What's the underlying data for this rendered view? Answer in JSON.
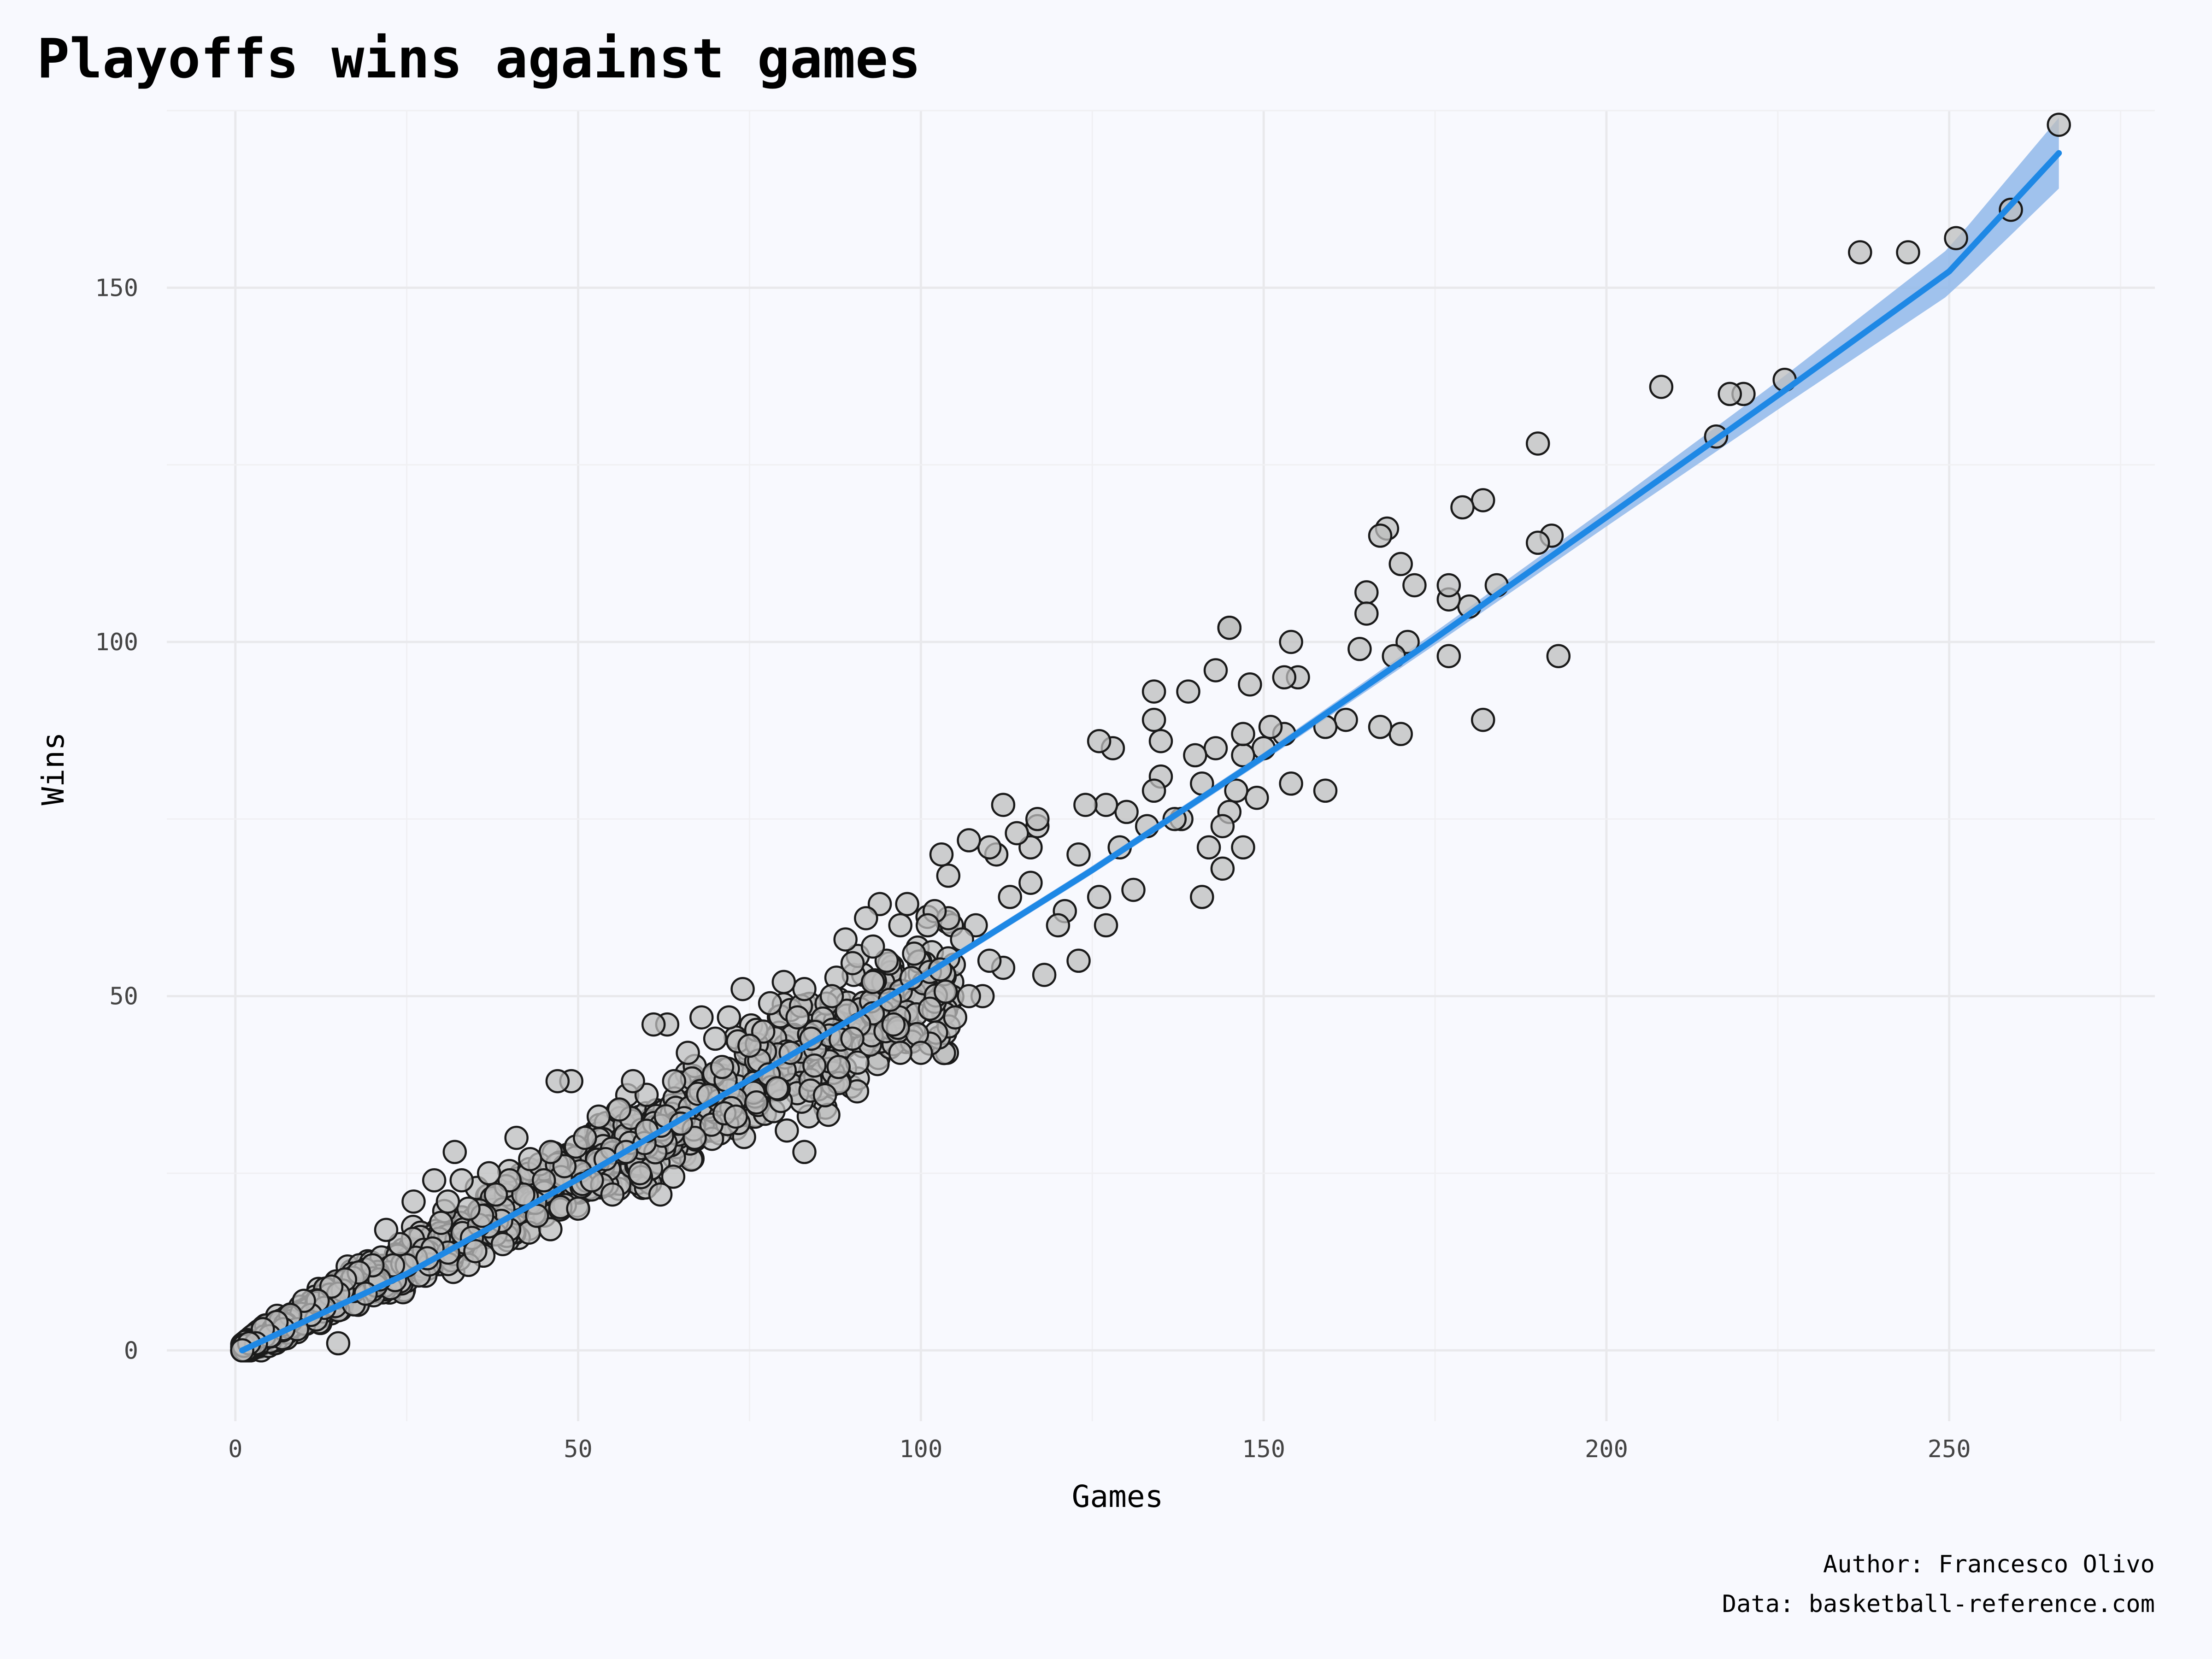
{
  "chart_data": {
    "type": "scatter",
    "title": "Playoffs wins against games",
    "xlabel": "Games",
    "ylabel": "Wins",
    "xlim": [
      -10,
      280
    ],
    "ylim": [
      -10,
      175
    ],
    "x_ticks": [
      0,
      50,
      100,
      150,
      200,
      250
    ],
    "y_ticks": [
      0,
      50,
      100,
      150
    ],
    "x_tick_labels": [
      "0",
      "50",
      "100",
      "150",
      "200",
      "250"
    ],
    "y_tick_labels": [
      "0",
      "50",
      "100",
      "150"
    ],
    "grid": true,
    "point_color": "#BEBEBE",
    "point_edge_color": "#1A1A1A",
    "trend_line": {
      "method": "smooth",
      "color": "#1E88E5",
      "band_color": "#90B9EA",
      "points": [
        [
          1,
          0
        ],
        [
          25,
          10.8
        ],
        [
          50,
          24.2
        ],
        [
          75,
          38.2
        ],
        [
          100,
          52.6
        ],
        [
          125,
          67.8
        ],
        [
          150,
          83.8
        ],
        [
          175,
          100.5
        ],
        [
          200,
          117.6
        ],
        [
          225,
          134.8
        ],
        [
          250,
          152.3
        ],
        [
          266,
          169
        ]
      ],
      "band_halfwidth": [
        [
          1,
          0.4
        ],
        [
          150,
          0.6
        ],
        [
          175,
          0.9
        ],
        [
          200,
          1.3
        ],
        [
          225,
          2.0
        ],
        [
          250,
          3.3
        ],
        [
          266,
          5.0
        ]
      ]
    },
    "highlight_points": [
      [
        266,
        173
      ],
      [
        259,
        161
      ],
      [
        251,
        157
      ],
      [
        244,
        155
      ],
      [
        237,
        155
      ],
      [
        226,
        137
      ],
      [
        220,
        135
      ],
      [
        218,
        135
      ],
      [
        216,
        129
      ],
      [
        208,
        136
      ],
      [
        193,
        98
      ],
      [
        192,
        115
      ],
      [
        190,
        114
      ],
      [
        190,
        128
      ],
      [
        184,
        108
      ],
      [
        182,
        120
      ],
      [
        182,
        89
      ],
      [
        180,
        105
      ],
      [
        179,
        119
      ],
      [
        177,
        98
      ],
      [
        177,
        106
      ],
      [
        177,
        108
      ],
      [
        172,
        108
      ],
      [
        171,
        100
      ],
      [
        170,
        87
      ],
      [
        170,
        111
      ],
      [
        169,
        98
      ],
      [
        168,
        116
      ],
      [
        167,
        115
      ],
      [
        167,
        88
      ],
      [
        165,
        107
      ],
      [
        165,
        104
      ],
      [
        164,
        99
      ],
      [
        162,
        89
      ],
      [
        159,
        79
      ],
      [
        159,
        88
      ],
      [
        155,
        95
      ],
      [
        154,
        100
      ],
      [
        154,
        80
      ],
      [
        153,
        87
      ],
      [
        153,
        95
      ],
      [
        151,
        88
      ],
      [
        150,
        85
      ],
      [
        149,
        78
      ],
      [
        148,
        94
      ],
      [
        147,
        84
      ],
      [
        147,
        87
      ],
      [
        147,
        71
      ],
      [
        146,
        79
      ],
      [
        145,
        102
      ],
      [
        145,
        102
      ],
      [
        145,
        76
      ],
      [
        144,
        74
      ],
      [
        144,
        68
      ],
      [
        143,
        85
      ],
      [
        143,
        96
      ],
      [
        142,
        71
      ],
      [
        141,
        64
      ],
      [
        141,
        80
      ],
      [
        140,
        84
      ],
      [
        139,
        93
      ],
      [
        138,
        75
      ],
      [
        137,
        75
      ],
      [
        135,
        86
      ],
      [
        135,
        81
      ],
      [
        134,
        79
      ],
      [
        134,
        89
      ],
      [
        134,
        93
      ],
      [
        133,
        74
      ],
      [
        131,
        65
      ],
      [
        130,
        76
      ],
      [
        129,
        71
      ],
      [
        128,
        85
      ],
      [
        127,
        77
      ],
      [
        127,
        60
      ],
      [
        126,
        86
      ],
      [
        126,
        64
      ],
      [
        124,
        77
      ],
      [
        123,
        55
      ],
      [
        123,
        70
      ],
      [
        121,
        62
      ],
      [
        120,
        60
      ],
      [
        118,
        53
      ],
      [
        117,
        74
      ],
      [
        117,
        75
      ],
      [
        116,
        71
      ],
      [
        116,
        66
      ],
      [
        114,
        73
      ],
      [
        113,
        64
      ],
      [
        112,
        54
      ],
      [
        112,
        77
      ],
      [
        111,
        70
      ],
      [
        110,
        55
      ],
      [
        110,
        71
      ],
      [
        109,
        50
      ],
      [
        108,
        60
      ],
      [
        107,
        72
      ],
      [
        107,
        50
      ],
      [
        106,
        58
      ],
      [
        105,
        47
      ],
      [
        104,
        61
      ],
      [
        104,
        67
      ],
      [
        103,
        70
      ],
      [
        102,
        62
      ],
      [
        101,
        60
      ],
      [
        100,
        42
      ],
      [
        99,
        56
      ],
      [
        98,
        63
      ],
      [
        97,
        42
      ],
      [
        97,
        60
      ],
      [
        96,
        46
      ],
      [
        95,
        55
      ],
      [
        94,
        63
      ],
      [
        93,
        57
      ],
      [
        93,
        52
      ],
      [
        92,
        61
      ],
      [
        91,
        46
      ],
      [
        90,
        44
      ],
      [
        89,
        58
      ],
      [
        88,
        40
      ],
      [
        87,
        50
      ],
      [
        86,
        36
      ],
      [
        84,
        44
      ],
      [
        83,
        28
      ],
      [
        83,
        51
      ],
      [
        82,
        47
      ],
      [
        81,
        42
      ],
      [
        80,
        52
      ],
      [
        79,
        37
      ],
      [
        78,
        49
      ],
      [
        77,
        45
      ],
      [
        76,
        35
      ],
      [
        75,
        43
      ],
      [
        74,
        51
      ],
      [
        73,
        33
      ],
      [
        72,
        47
      ],
      [
        71,
        40
      ],
      [
        70,
        44
      ],
      [
        69,
        36
      ],
      [
        68,
        47
      ],
      [
        67,
        30
      ],
      [
        66,
        42
      ],
      [
        65,
        32
      ],
      [
        64,
        38
      ],
      [
        63,
        46
      ],
      [
        62,
        22
      ],
      [
        61,
        46
      ],
      [
        60,
        31
      ],
      [
        59,
        25
      ],
      [
        58,
        38
      ],
      [
        57,
        28
      ],
      [
        56,
        34
      ],
      [
        55,
        22
      ],
      [
        54,
        27
      ],
      [
        53,
        33
      ],
      [
        52,
        24
      ],
      [
        51,
        30
      ],
      [
        50,
        20
      ],
      [
        49,
        38
      ],
      [
        48,
        26
      ],
      [
        47,
        38
      ],
      [
        46,
        28
      ],
      [
        45,
        24
      ],
      [
        44,
        19
      ],
      [
        43,
        27
      ],
      [
        42,
        22
      ],
      [
        41,
        30
      ],
      [
        40,
        24
      ],
      [
        39,
        15
      ],
      [
        38,
        22
      ],
      [
        37,
        25
      ],
      [
        36,
        19
      ],
      [
        35,
        14
      ],
      [
        34,
        20
      ],
      [
        33,
        24
      ],
      [
        32,
        28
      ],
      [
        31,
        21
      ],
      [
        30,
        18
      ],
      [
        29,
        24
      ],
      [
        28,
        13
      ],
      [
        26,
        21
      ],
      [
        25,
        12
      ],
      [
        24,
        15
      ],
      [
        23,
        12
      ],
      [
        22,
        17
      ],
      [
        21,
        10
      ],
      [
        20,
        12
      ],
      [
        19,
        8
      ],
      [
        18,
        11
      ],
      [
        16,
        10
      ],
      [
        15,
        8
      ],
      [
        15,
        1
      ],
      [
        14,
        9
      ],
      [
        13,
        6
      ],
      [
        12,
        7
      ],
      [
        11,
        5
      ],
      [
        10,
        7
      ],
      [
        9,
        3
      ],
      [
        8,
        5
      ],
      [
        7,
        3
      ],
      [
        6,
        4
      ],
      [
        5,
        2
      ],
      [
        4,
        3
      ],
      [
        3,
        1
      ],
      [
        2,
        1
      ],
      [
        1,
        0
      ]
    ],
    "generated_cloud": {
      "count": 1150,
      "x_range": [
        1,
        105
      ],
      "wins_per_game_ratio": 0.5,
      "spread": 0.12
    }
  },
  "caption": {
    "author": "Author: Francesco Olivo",
    "source": "Data: basketball-reference.com"
  }
}
